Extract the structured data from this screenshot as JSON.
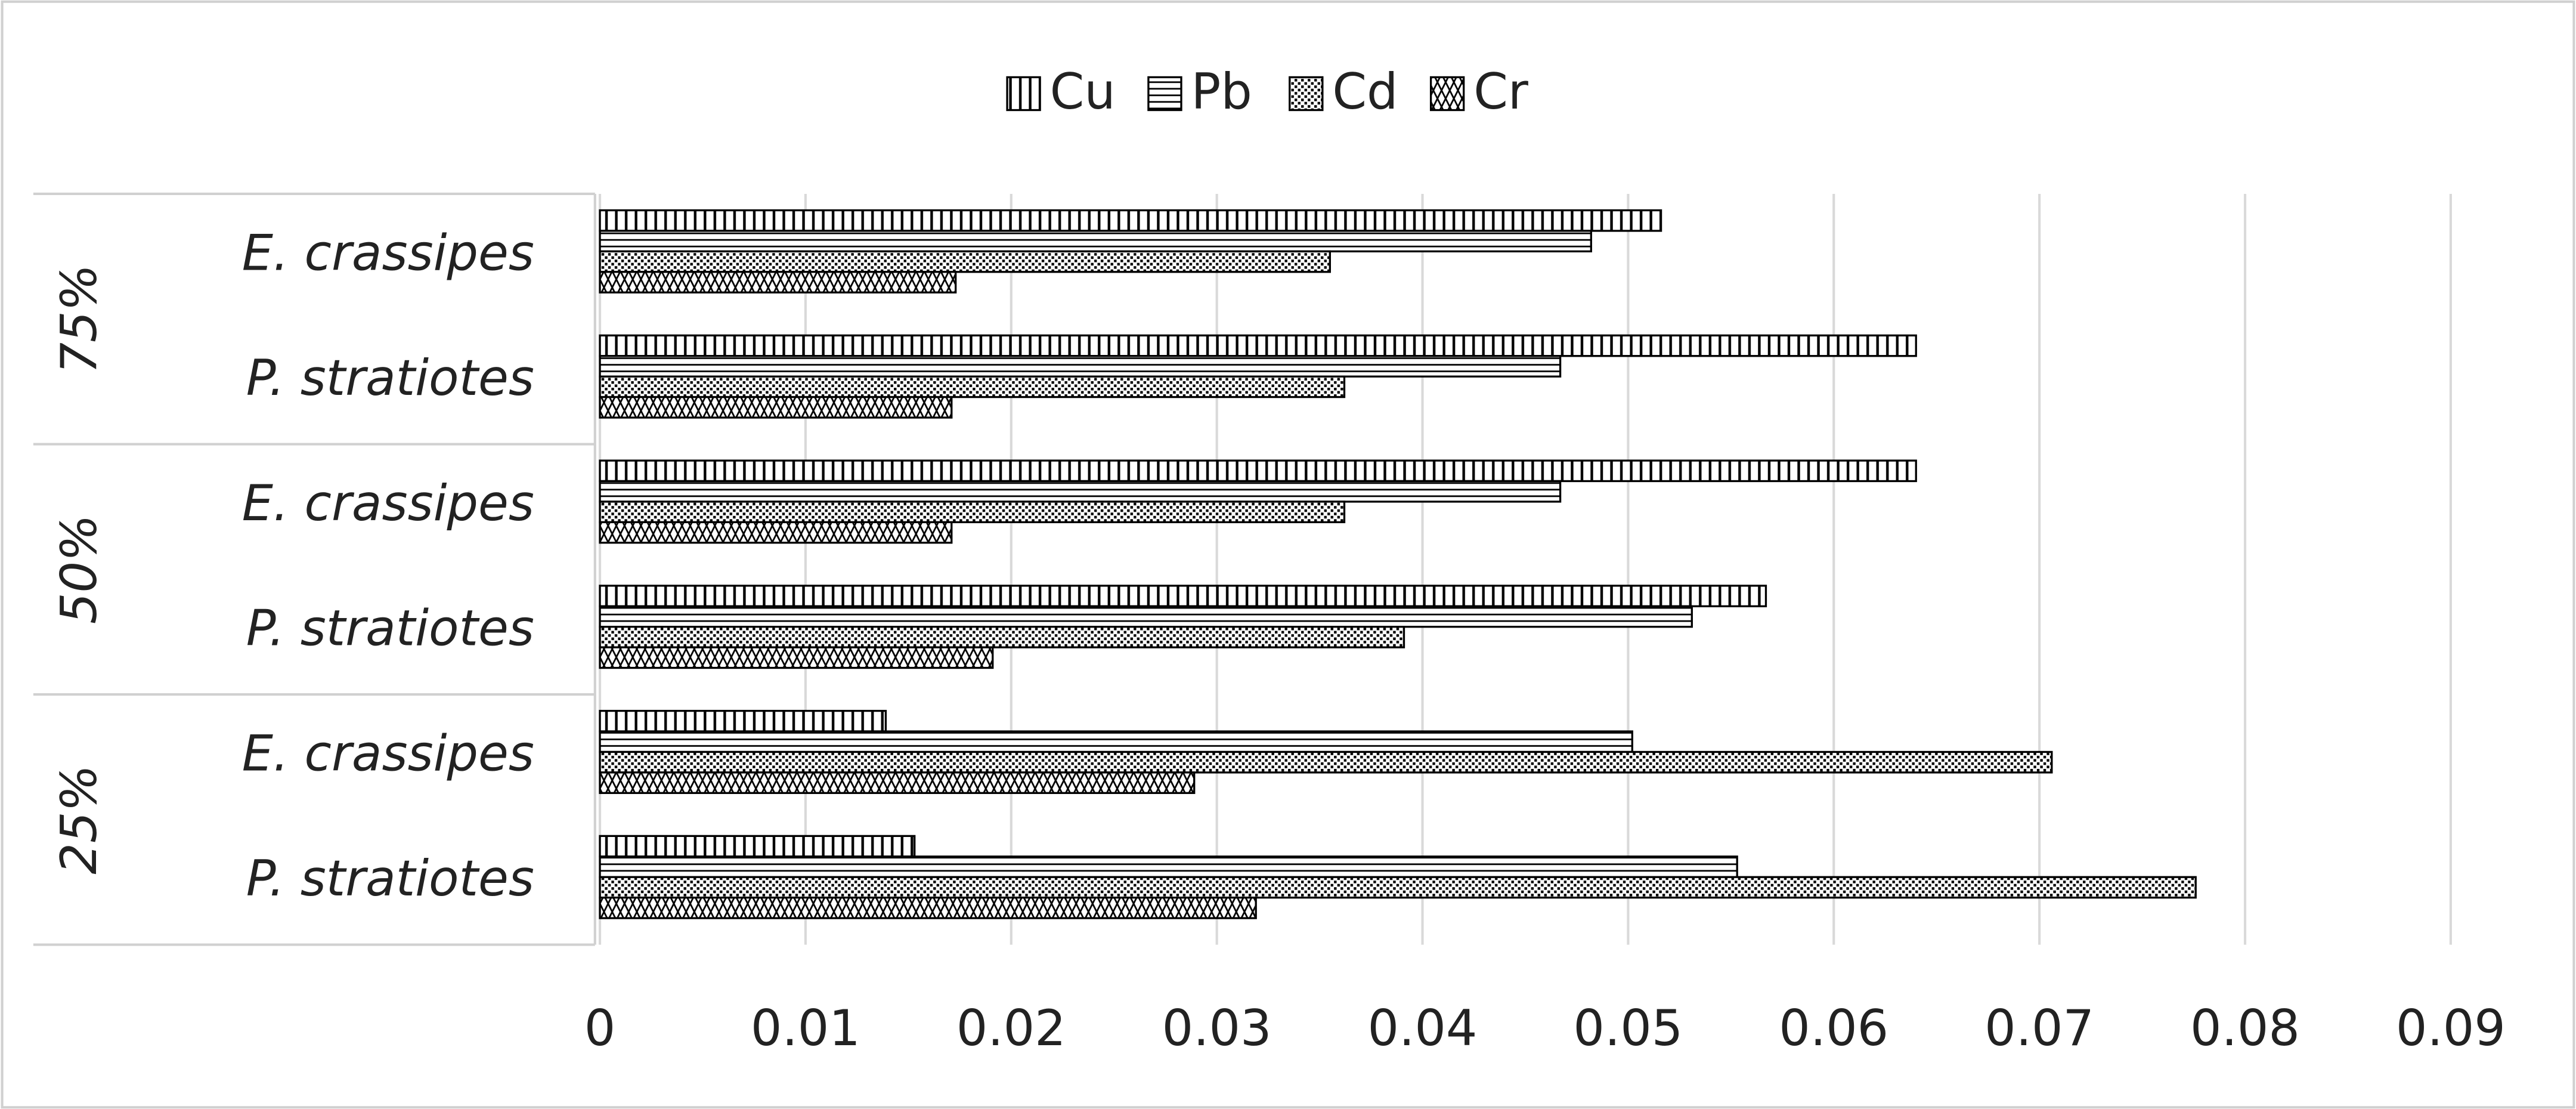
{
  "chart_data": {
    "type": "hbar",
    "groups": [
      "75%",
      "50%",
      "25%"
    ],
    "categories": [
      "E. crassipes",
      "P. stratiotes",
      "E. crassipes",
      "P. stratiotes",
      "E. crassipes",
      "P. stratiotes"
    ],
    "series": [
      {
        "name": "Cu",
        "color": "#000000",
        "values": [
          0.0516,
          0.064,
          0.064,
          0.0567,
          0.0139,
          0.0153
        ]
      },
      {
        "name": "Pb",
        "color": "#000000",
        "values": [
          0.0482,
          0.0467,
          0.0467,
          0.0531,
          0.0502,
          0.0553
        ]
      },
      {
        "name": "Cd",
        "color": "#000000",
        "values": [
          0.0355,
          0.0362,
          0.0362,
          0.0391,
          0.0706,
          0.0776
        ]
      },
      {
        "name": "Cr",
        "color": "#000000",
        "values": [
          0.0173,
          0.0171,
          0.0171,
          0.0191,
          0.0289,
          0.0319
        ]
      }
    ],
    "xlim": [
      0,
      0.09
    ],
    "xticks": [
      0,
      0.01,
      0.02,
      0.03,
      0.04,
      0.05,
      0.06,
      0.07,
      0.08,
      0.09
    ],
    "grid": true,
    "legend": "top"
  }
}
